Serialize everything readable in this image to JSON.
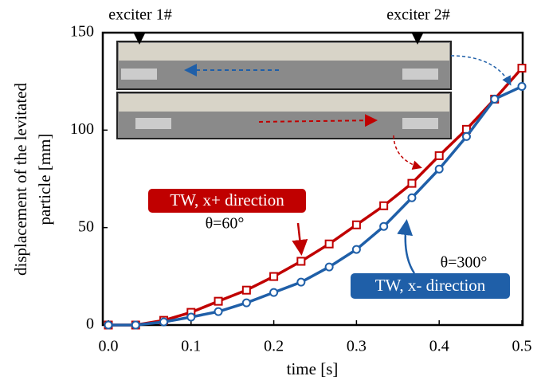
{
  "chart_data": {
    "type": "line",
    "xlabel": "time [s]",
    "ylabel": [
      "displacement of the levitated",
      "particle [mm]"
    ],
    "x": [
      0,
      0.033,
      0.067,
      0.1,
      0.133,
      0.167,
      0.2,
      0.233,
      0.267,
      0.3,
      0.333,
      0.367,
      0.4,
      0.433,
      0.467,
      0.5
    ],
    "series": [
      {
        "name": "TW, x+ direction",
        "color": "#c00000",
        "marker": "square",
        "values": [
          0,
          0,
          2.4,
          6.5,
          12.2,
          17.9,
          24.9,
          32.7,
          41.6,
          51.4,
          61.2,
          72.7,
          86.9,
          100.4,
          115.9,
          131.8
        ]
      },
      {
        "name": "TW, x- direction",
        "color": "#1f5fa8",
        "marker": "circle",
        "values": [
          0,
          0,
          1.6,
          4.1,
          6.9,
          11.4,
          16.7,
          22,
          29.8,
          38.8,
          50.6,
          65.3,
          80,
          96.7,
          115.9,
          122.4
        ]
      }
    ],
    "xlim": [
      0,
      0.5
    ],
    "ylim": [
      0,
      150
    ],
    "xticks": [
      {
        "value": 0,
        "label": "0.0"
      },
      0.1,
      0.2,
      0.3,
      0.4,
      0.5
    ],
    "yticks": [
      0,
      50,
      100,
      150
    ],
    "annotations": {
      "exciter1": "exciter 1#",
      "exciter2": "exciter 2#",
      "theta1": "θ=60°",
      "theta2": "θ=300°"
    }
  }
}
